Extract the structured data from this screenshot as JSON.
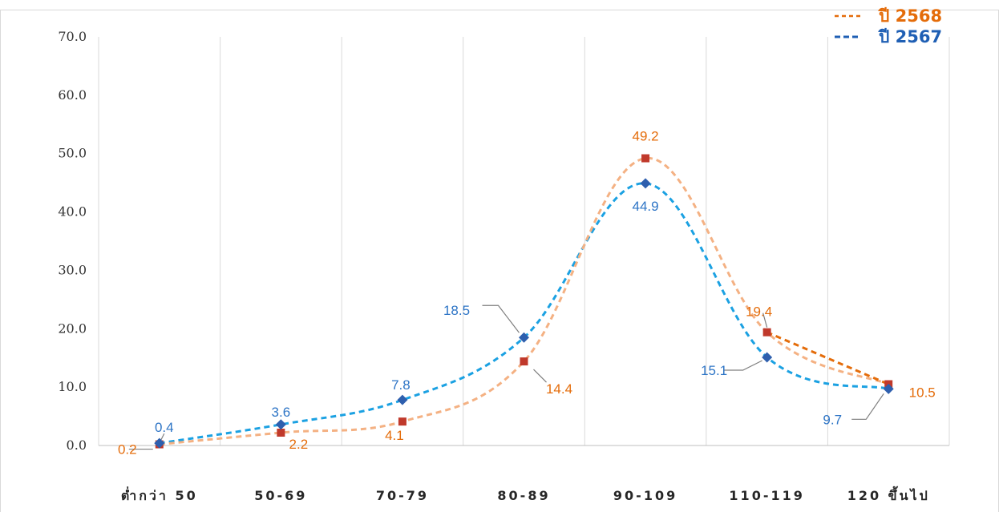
{
  "chart_data": {
    "type": "line",
    "categories": [
      "ต่ำกว่า 50",
      "50-69",
      "70-79",
      "80-89",
      "90-109",
      "110-119",
      "120 ขึ้นไป"
    ],
    "series": [
      {
        "name": "ปี 2568",
        "values": [
          0.2,
          2.2,
          4.1,
          14.4,
          49.2,
          19.4,
          10.5
        ],
        "labels": [
          "0.2",
          "2.2",
          "4.1",
          "14.4",
          "49.2",
          "19.4",
          "10.5"
        ],
        "line_color": "#F4B183",
        "tail_color": "#E46C0A",
        "marker_color": "#C0392B",
        "label_color": "#E46C0A",
        "marker": "square"
      },
      {
        "name": "ปี 2567",
        "values": [
          0.4,
          3.6,
          7.8,
          18.5,
          44.9,
          15.1,
          9.7
        ],
        "labels": [
          "0.4",
          "3.6",
          "7.8",
          "18.5",
          "44.9",
          "15.1",
          "9.7"
        ],
        "line_color": "#1BA1E2",
        "marker_color": "#2E5FAE",
        "label_color": "#2E75C6",
        "marker": "diamond"
      }
    ],
    "y_ticks": [
      "0.0",
      "10.0",
      "20.0",
      "30.0",
      "40.0",
      "50.0",
      "60.0",
      "70.0"
    ],
    "ylim": [
      0,
      70
    ],
    "grid": "vertical",
    "legend_position": "top-right",
    "line_style": "dashed-smooth",
    "legend_colors": {
      "ปี 2568": "#E46C0A",
      "ปี 2567": "#1F5FB4"
    }
  }
}
